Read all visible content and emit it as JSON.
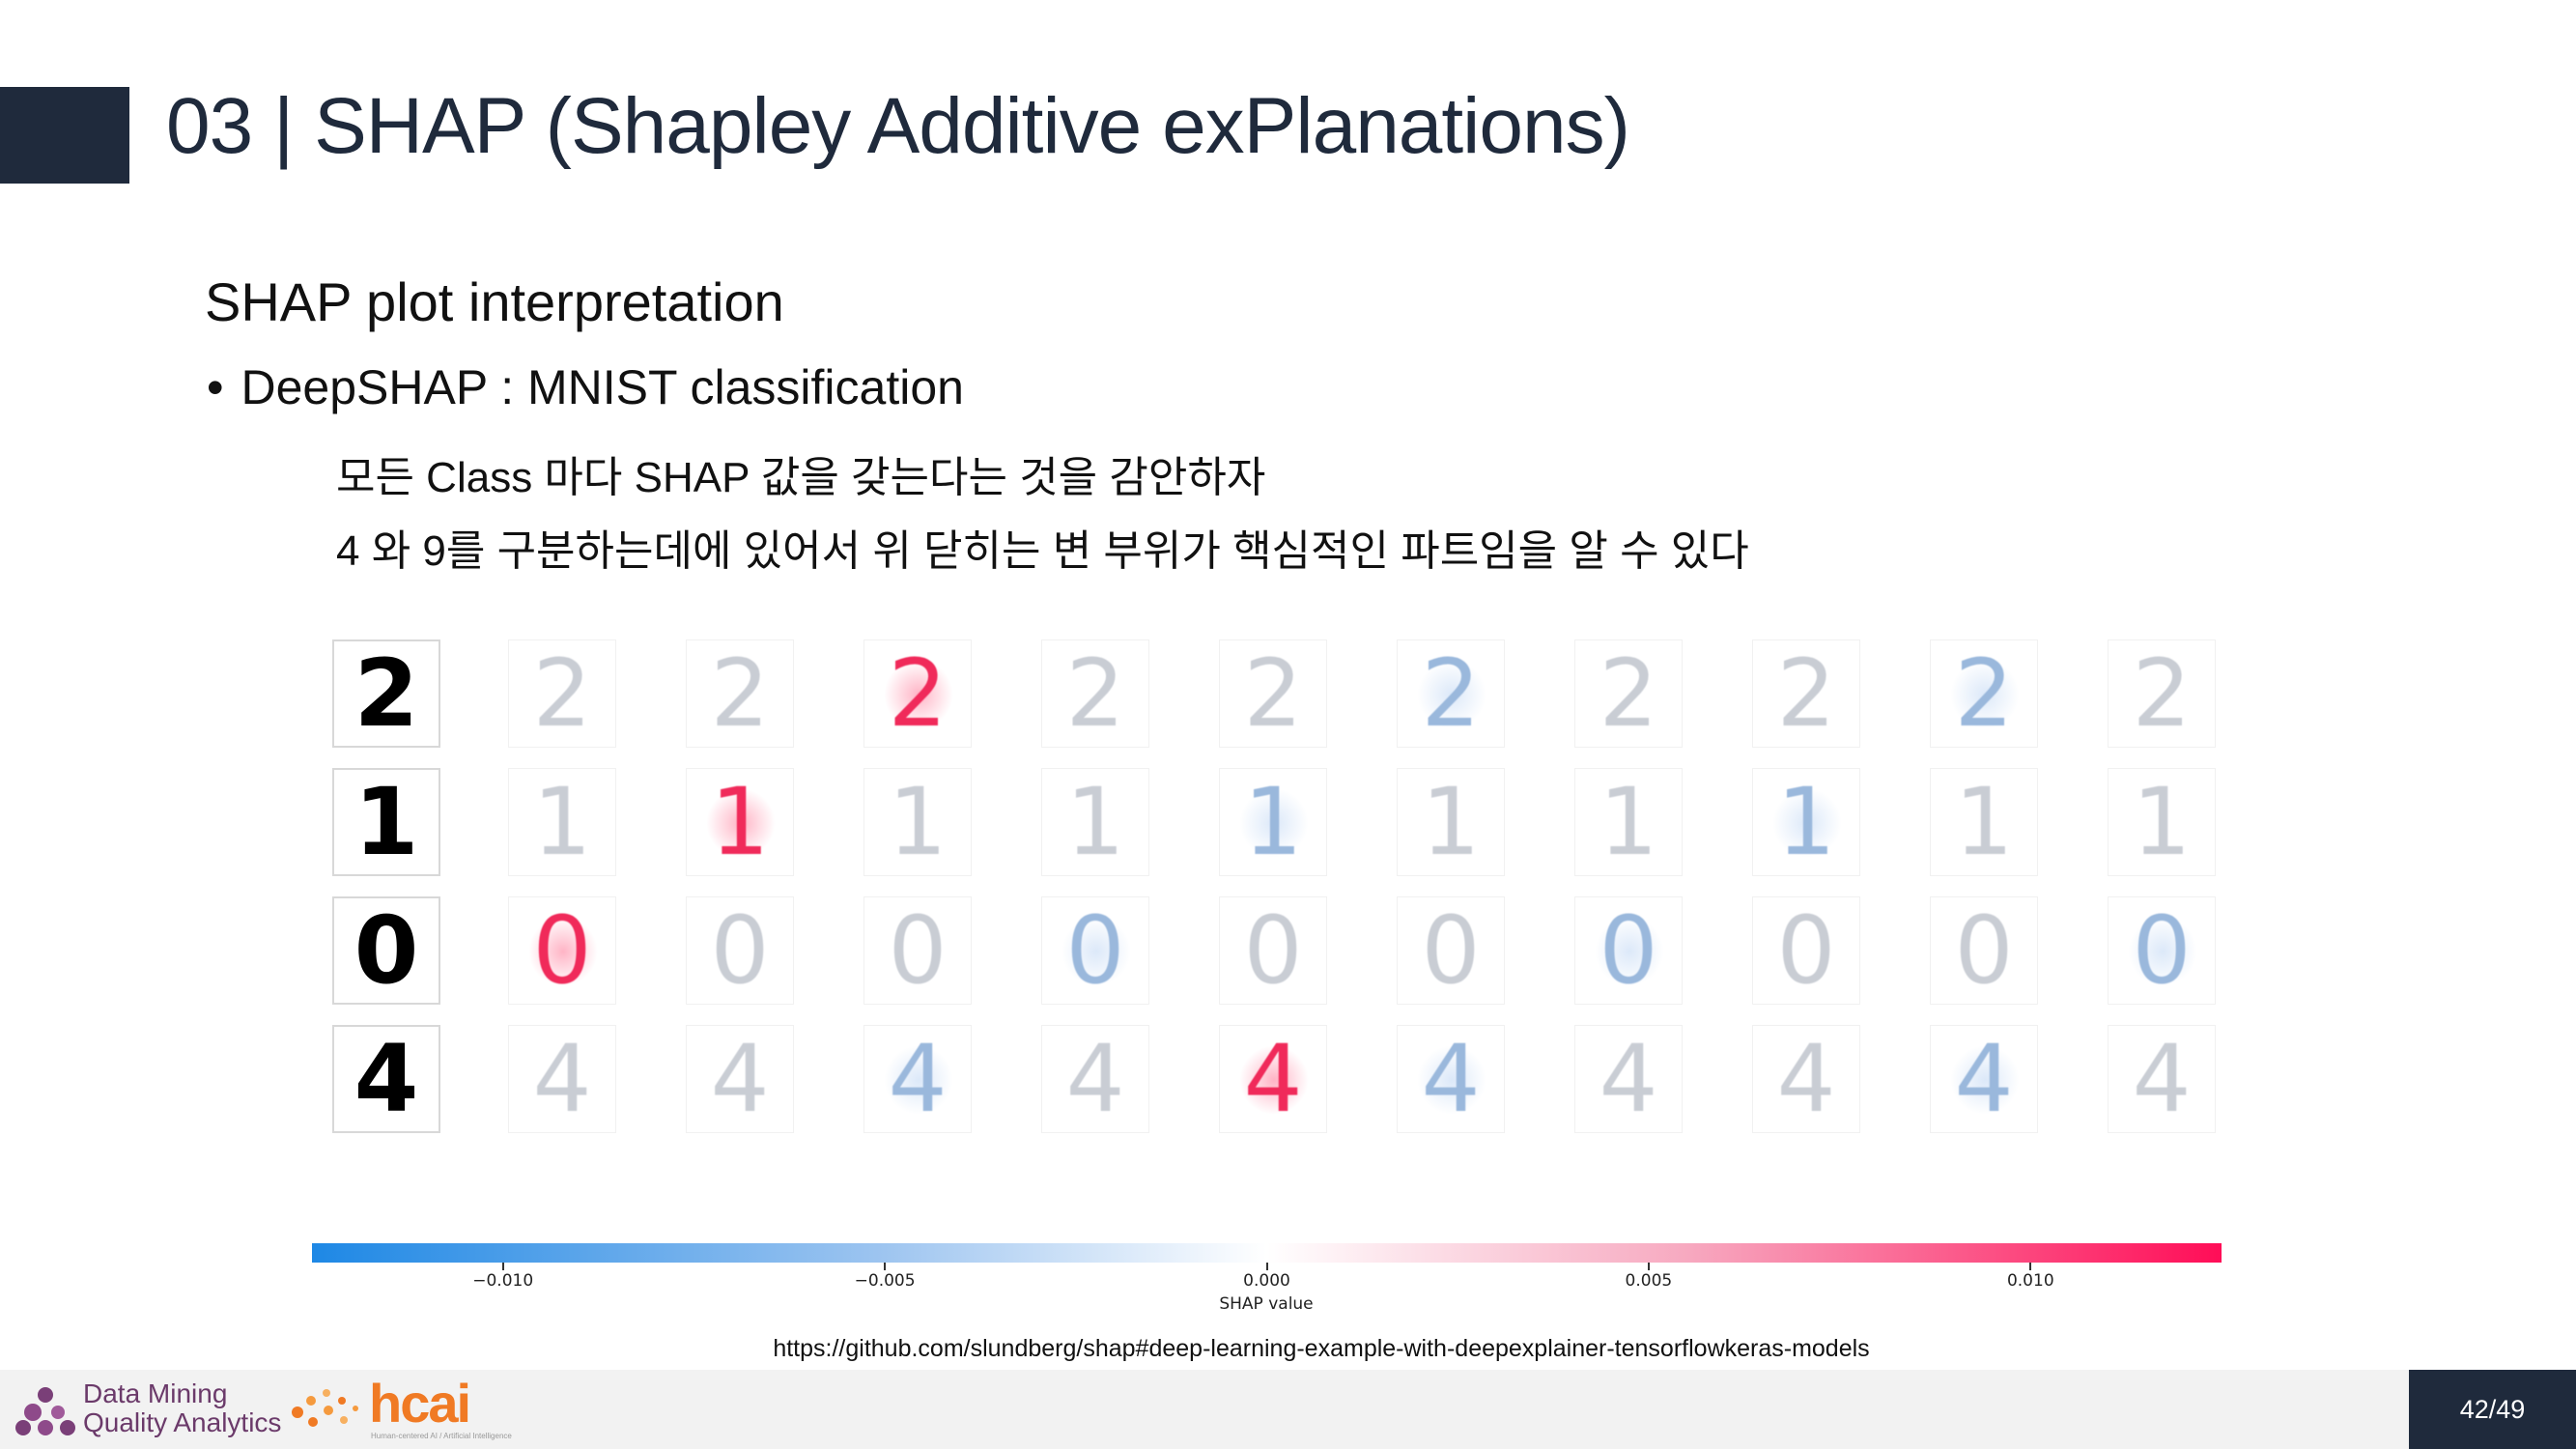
{
  "slide": {
    "title": "03 | SHAP (Shapley Additive exPlanations)",
    "subtitle": "SHAP plot interpretation",
    "bullet": "DeepSHAP : MNIST classification",
    "line1": "모든 Class 마다 SHAP 값을 갖는다는 것을 감안하자",
    "line2": "4 와 9를 구분하는데에 있어서 위 닫히는 변 부위가 핵심적인 파트임을 알 수 있다",
    "source": "https://github.com/slundberg/shap#deep-learning-example-with-deepexplainer-tensorflowkeras-models",
    "page": "42/49"
  },
  "figure": {
    "inputs": [
      "2",
      "1",
      "0",
      "4"
    ],
    "highlight_class": [
      2,
      1,
      0,
      4
    ],
    "num_classes": 10,
    "colorbar": {
      "label": "SHAP value",
      "ticks": [
        "−0.010",
        "−0.005",
        "0.000",
        "0.005",
        "0.010"
      ],
      "range": [
        -0.0125,
        0.0125
      ],
      "tick_values": [
        -0.01,
        -0.005,
        0.0,
        0.005,
        0.01
      ],
      "colors": {
        "negative": "#1e88e5",
        "zero": "#ffffff",
        "positive": "#ff0d57"
      }
    }
  },
  "footer": {
    "logo_line1": "Data Mining",
    "logo_line2": "Quality Analytics",
    "logo2": "hcai",
    "logo2_sub": "Human-centered AI / Artificial Intelligence"
  }
}
